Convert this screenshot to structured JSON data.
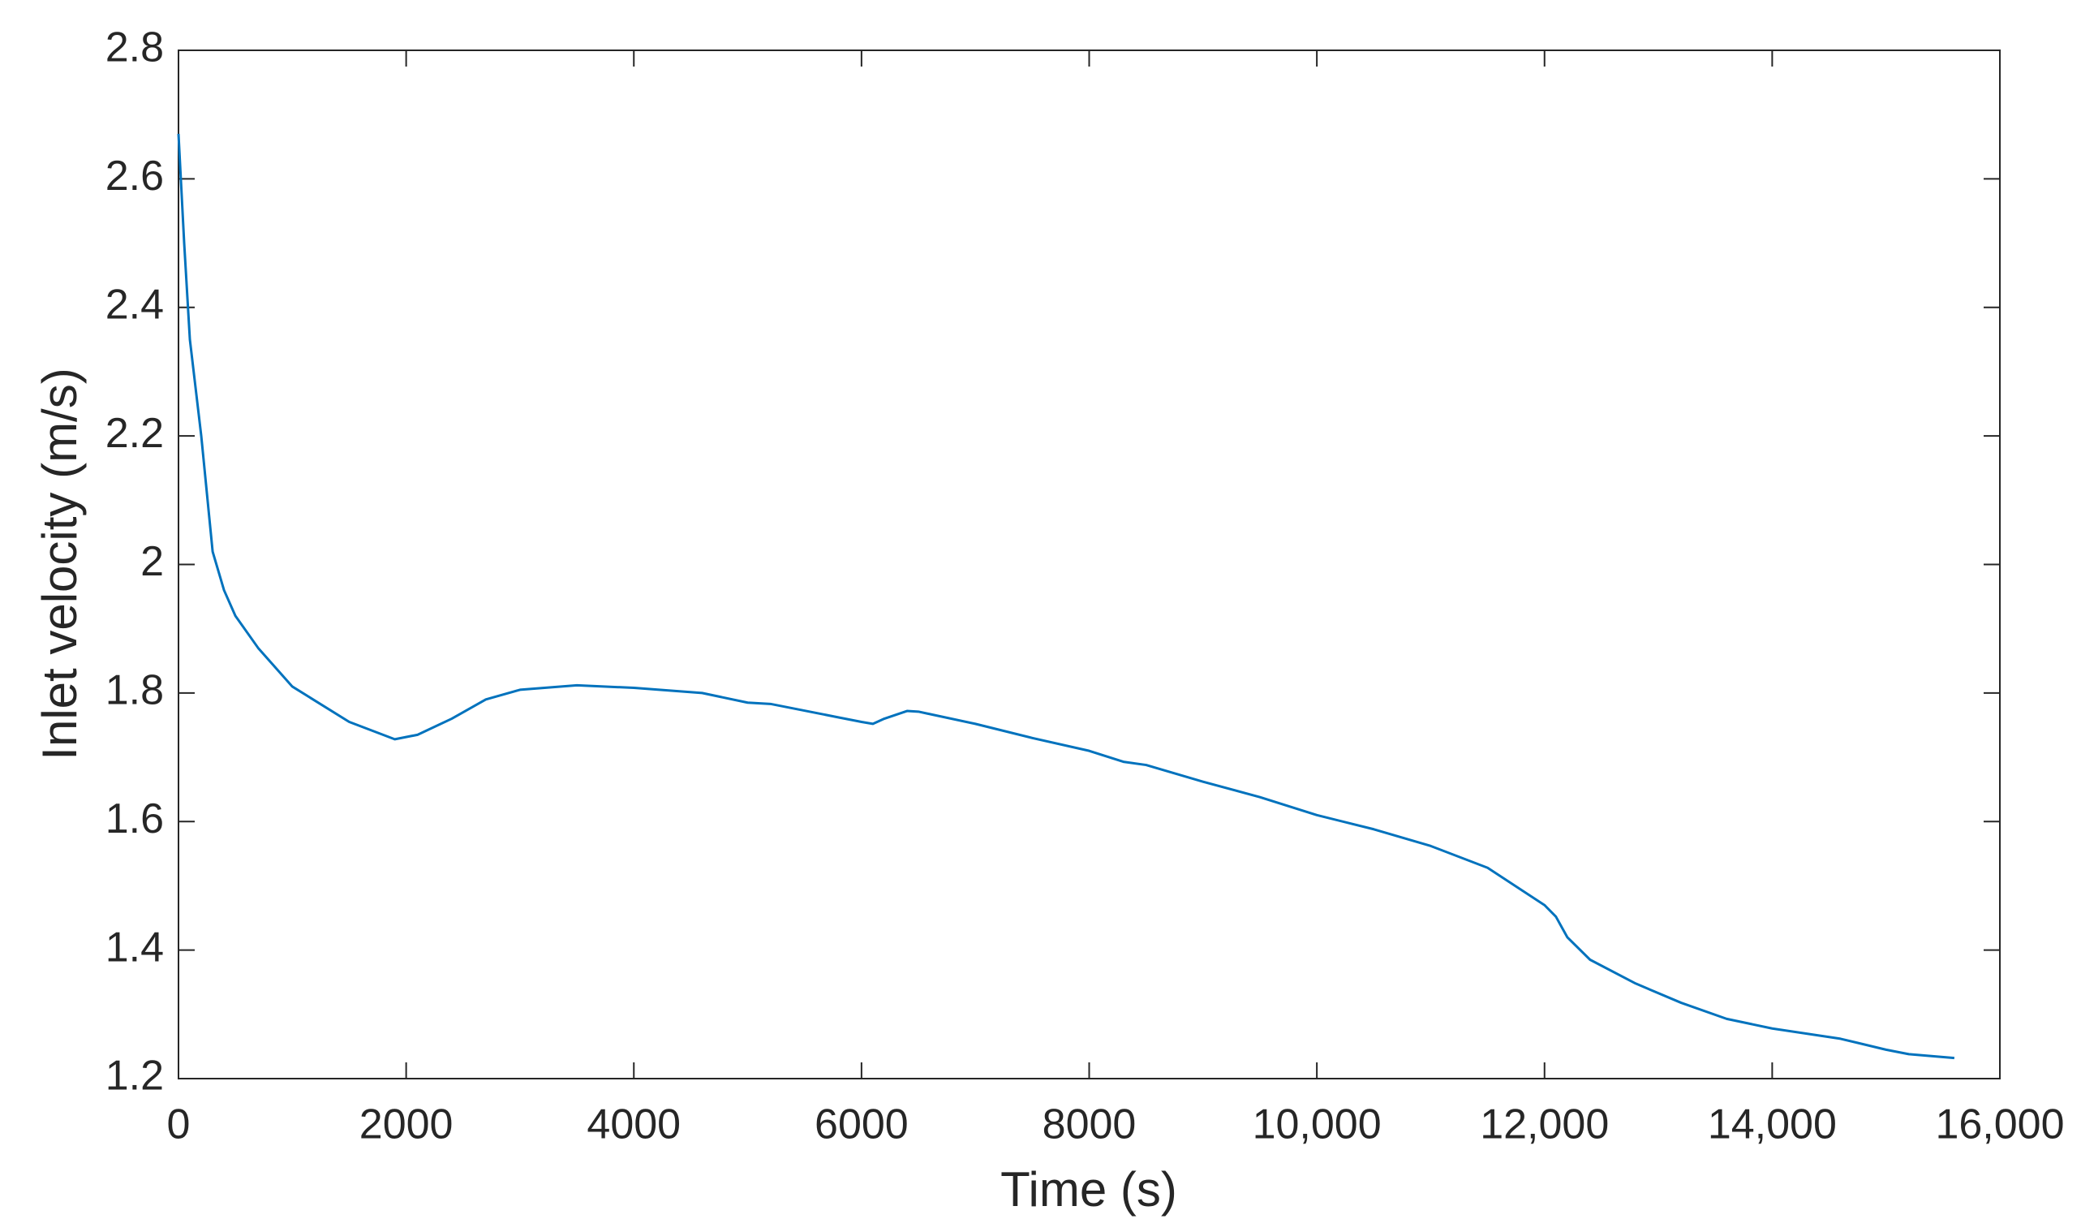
{
  "chart_data": {
    "type": "line",
    "xlabel": "Time (s)",
    "ylabel": "Inlet velocity (m/s)",
    "x": [
      0,
      50,
      100,
      200,
      300,
      400,
      500,
      700,
      1000,
      1500,
      1900,
      2100,
      2400,
      2700,
      3000,
      3500,
      4000,
      4600,
      5000,
      5200,
      5800,
      6000,
      6100,
      6200,
      6400,
      6500,
      7000,
      7500,
      8000,
      8300,
      8500,
      9000,
      9500,
      10000,
      10500,
      11000,
      11500,
      12000,
      12100,
      12200,
      12400,
      12800,
      13200,
      13600,
      14000,
      14600,
      15000,
      15200,
      15600
    ],
    "series": [
      {
        "color": "#0072bd",
        "values": [
          2.67,
          2.5,
          2.35,
          2.2,
          2.02,
          1.96,
          1.92,
          1.87,
          1.81,
          1.755,
          1.728,
          1.735,
          1.76,
          1.79,
          1.805,
          1.812,
          1.808,
          1.8,
          1.785,
          1.783,
          1.762,
          1.755,
          1.752,
          1.76,
          1.772,
          1.771,
          1.752,
          1.73,
          1.71,
          1.693,
          1.688,
          1.662,
          1.638,
          1.61,
          1.588,
          1.562,
          1.528,
          1.47,
          1.452,
          1.42,
          1.385,
          1.348,
          1.318,
          1.293,
          1.278,
          1.262,
          1.245,
          1.238,
          1.232
        ]
      }
    ],
    "xlim": [
      0,
      16000
    ],
    "xticks": [
      0,
      2000,
      4000,
      6000,
      8000,
      {
        "value": 10000,
        "label": "10,000"
      },
      {
        "value": 12000,
        "label": "12,000"
      },
      {
        "value": 14000,
        "label": "14,000"
      },
      {
        "value": 16000,
        "label": "16,000"
      }
    ],
    "ylim": [
      1.2,
      2.8
    ],
    "yticks": [
      1.2,
      1.4,
      1.6,
      1.8,
      2,
      2.2,
      2.4,
      2.6,
      2.8
    ],
    "grid": false
  }
}
